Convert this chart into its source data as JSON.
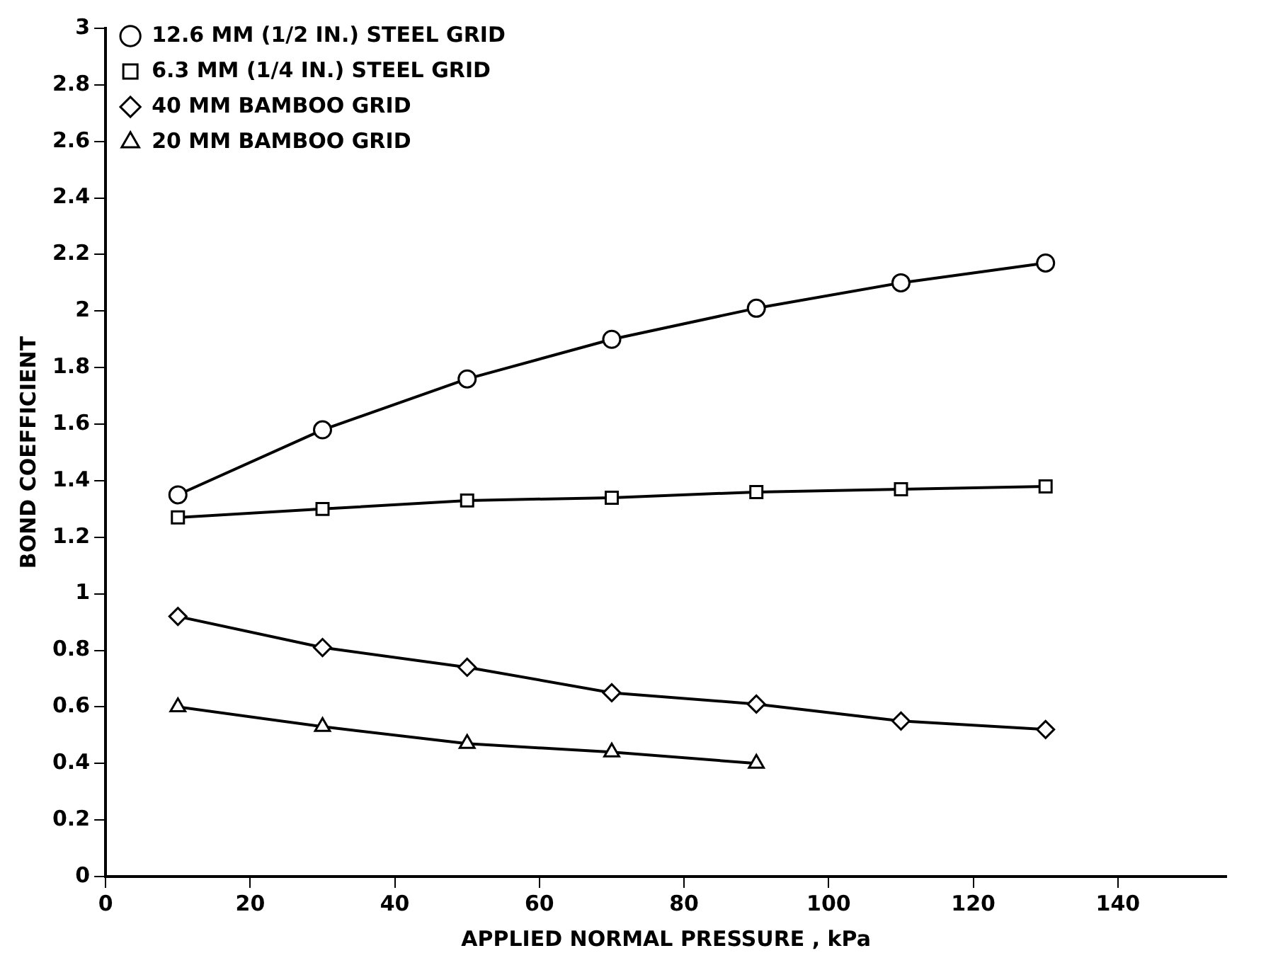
{
  "chart_data": {
    "type": "line",
    "xlabel": "APPLIED NORMAL PRESSURE , kPa",
    "ylabel": "BOND COEFFICIENT",
    "x": [
      10,
      30,
      50,
      70,
      90,
      110,
      130
    ],
    "series": [
      {
        "name": "12.6 MM (1/2 IN.) STEEL GRID",
        "color": "#000000",
        "marker": "circle",
        "values": [
          1.35,
          1.58,
          1.76,
          1.9,
          2.01,
          2.1,
          2.17
        ]
      },
      {
        "name": "6.3 MM (1/4 IN.) STEEL GRID",
        "color": "#000000",
        "marker": "square",
        "values": [
          1.27,
          1.3,
          1.33,
          1.34,
          1.36,
          1.37,
          1.38
        ]
      },
      {
        "name": "40 MM BAMBOO GRID",
        "color": "#000000",
        "marker": "diamond",
        "values": [
          0.92,
          0.81,
          0.74,
          0.65,
          0.61,
          0.55,
          0.52
        ]
      },
      {
        "name": "20 MM BAMBOO GRID",
        "color": "#000000",
        "marker": "triangle",
        "x": [
          10,
          30,
          50,
          70,
          90
        ],
        "values": [
          0.6,
          0.53,
          0.47,
          0.44,
          0.4
        ]
      }
    ],
    "xlim": [
      0,
      155
    ],
    "xticks": [
      0,
      20,
      40,
      60,
      80,
      100,
      120,
      140
    ],
    "ylim": [
      0,
      3
    ],
    "yticks": [
      0,
      0.2,
      0.4,
      0.6,
      0.8,
      1,
      1.2,
      1.4,
      1.6,
      1.8,
      2,
      2.2,
      2.4,
      2.6,
      2.8,
      3
    ],
    "legend": "top left",
    "grid": false,
    "line_style": "solid"
  }
}
